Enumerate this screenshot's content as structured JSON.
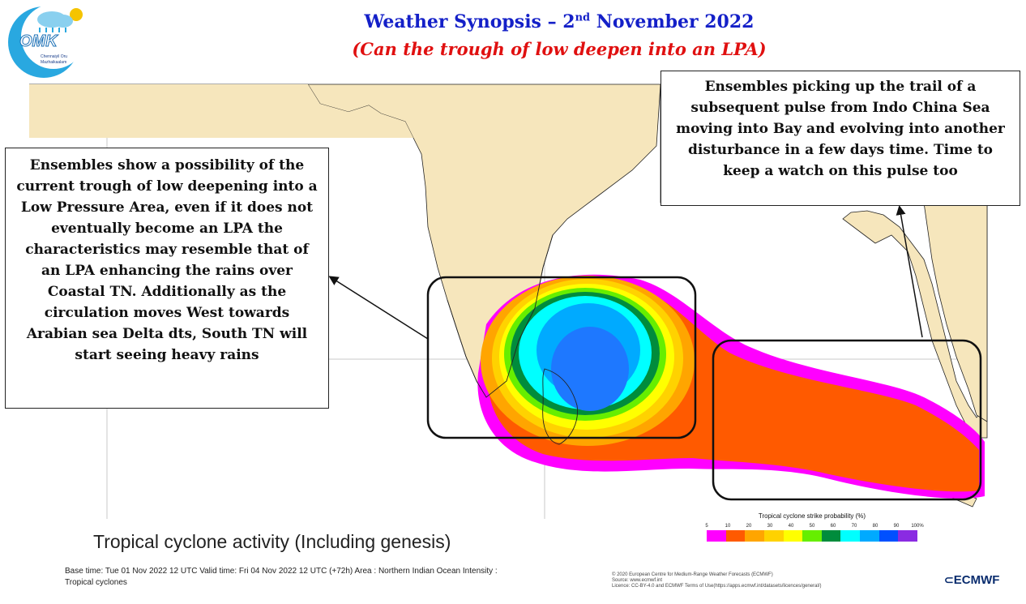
{
  "header": {
    "title_main": "Weather Synopsis – 2",
    "title_sup": "nd",
    "title_end": " November 2022",
    "subtitle": "(Can the trough of low deepen into an LPA)"
  },
  "logo": {
    "brand": "OMK",
    "tagline_line1": "Chennaiyil Oru",
    "tagline_line2": "Mazhaikaalam"
  },
  "callouts": {
    "left": "Ensembles show a possibility of the current trough of low deepening into a Low Pressure Area, even if it does not eventually become an LPA the characteristics may resemble that of an LPA enhancing the rains over Coastal TN. Additionally as the circulation moves West towards Arabian sea Delta dts, South TN will start seeing heavy rains",
    "right": "Ensembles picking up the trail of a subsequent pulse from Indo China Sea moving into Bay and evolving into another disturbance in a few days time. Time to keep a watch on this pulse too"
  },
  "map": {
    "caption": "Tropical cyclone activity (Including genesis)",
    "base_time": "Base time: Tue 01 Nov 2022 12 UTC Valid time: Fri 04 Nov 2022 12 UTC (+72h) Area : Northern Indian Ocean Intensity : Tropical cyclones",
    "copyright_line1": "© 2020 European Centre for Medium-Range Weather Forecasts (ECMWF)",
    "copyright_line2": "Source: www.ecmwf.int",
    "copyright_line3": "Licence: CC-BY-4.0 and ECMWF Terms of Use(https://apps.ecmwf.int/datasets/licences/general/)",
    "provider": "ECMWF"
  },
  "legend": {
    "title": "Tropical cyclone strike probability (%)",
    "ticks": [
      "5",
      "10",
      "20",
      "30",
      "40",
      "50",
      "60",
      "70",
      "80",
      "90",
      "100%"
    ],
    "colors": [
      "#ff00ff",
      "#ff5a00",
      "#ffa500",
      "#ffd200",
      "#ffff00",
      "#66ee00",
      "#008c3c",
      "#00ffff",
      "#00aaff",
      "#0050ff",
      "#8a2be2"
    ]
  }
}
